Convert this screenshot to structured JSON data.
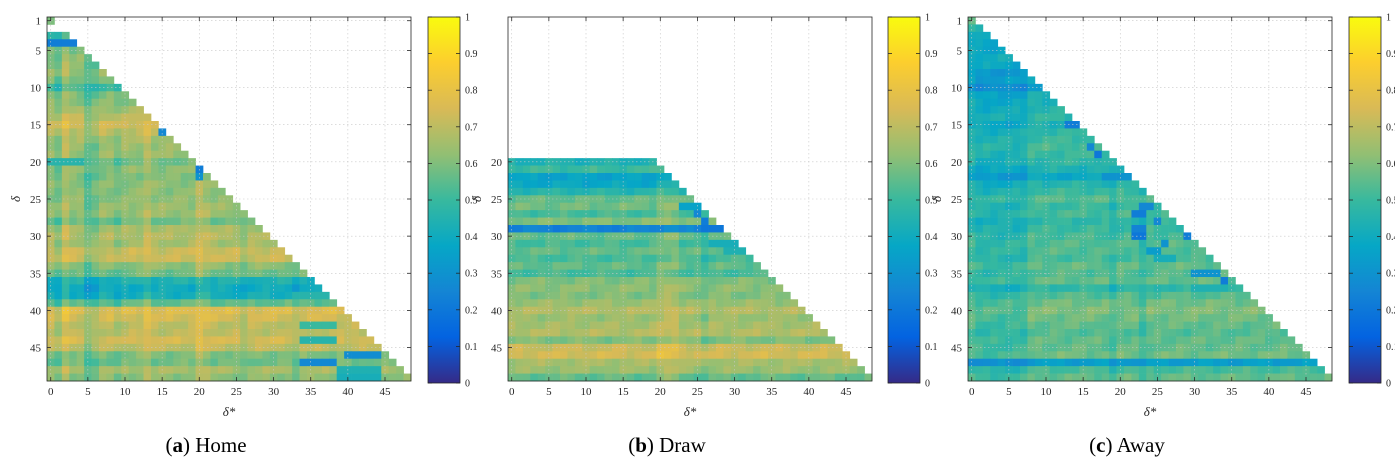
{
  "colorbar": {
    "ticks": [
      "0",
      "0.1",
      "0.2",
      "0.3",
      "0.4",
      "0.5",
      "0.6",
      "0.7",
      "0.8",
      "0.9",
      "1"
    ],
    "colormap": "parula",
    "colors": [
      "#352a87",
      "#0363e1",
      "#1485d4",
      "#06a7c6",
      "#38b99e",
      "#92bf73",
      "#d9ba56",
      "#fcce2e",
      "#f9fb0e"
    ]
  },
  "chart_data": [
    {
      "type": "heatmap",
      "panel": "a",
      "caption_letter": "a",
      "caption_title": "Home",
      "xlabel": "δ*",
      "ylabel": "δ",
      "x_ticks": [
        "0",
        "5",
        "10",
        "15",
        "20",
        "25",
        "30",
        "35",
        "40",
        "45"
      ],
      "y_ticks": [
        "1",
        "5",
        "10",
        "15",
        "20",
        "25",
        "30",
        "35",
        "40",
        "45"
      ],
      "x_range": [
        0,
        48
      ],
      "y_range": [
        1,
        49
      ],
      "clim": [
        0,
        1
      ],
      "mask": "lower-triangle (δ* < δ)",
      "row_value": {
        "1": 0.56,
        "3": 0.5,
        "4": 0.28,
        "5": 0.6,
        "6": 0.62,
        "7": 0.62,
        "8": 0.64,
        "9": 0.6,
        "10": 0.52,
        "11": 0.6,
        "12": 0.62,
        "13": 0.66,
        "14": 0.7,
        "15": 0.74,
        "16": 0.7,
        "17": 0.66,
        "18": 0.64,
        "19": 0.64,
        "20": 0.58,
        "21": 0.62,
        "22": 0.6,
        "23": 0.62,
        "24": 0.62,
        "25": 0.62,
        "26": 0.64,
        "27": 0.64,
        "28": 0.58,
        "29": 0.66,
        "30": 0.68,
        "31": 0.66,
        "32": 0.72,
        "33": 0.72,
        "34": 0.62,
        "35": 0.58,
        "36": 0.44,
        "37": 0.4,
        "38": 0.42,
        "39": 0.56,
        "40": 0.76,
        "41": 0.74,
        "42": 0.7,
        "43": 0.7,
        "44": 0.74,
        "45": 0.7,
        "46": 0.6,
        "47": 0.58,
        "48": 0.66,
        "49": 0.62
      },
      "col_offset": {
        "1": -0.05,
        "2": 0.05,
        "5": -0.08,
        "6": -0.05,
        "9": -0.04,
        "13": 0.05,
        "20": 0.06,
        "21": 0.03,
        "26": -0.04,
        "33": -0.04
      },
      "overrides": [
        {
          "row": 4,
          "col_from": 0,
          "col_to": 3,
          "value": 0.22
        },
        {
          "row": 9,
          "col_from": 9,
          "col_to": 9,
          "value": 0.3
        },
        {
          "row": 16,
          "col_from": 15,
          "col_to": 15,
          "value": 0.26
        },
        {
          "row": 20,
          "col_from": 0,
          "col_to": 4,
          "value": 0.46
        },
        {
          "row": 21,
          "col_from": 20,
          "col_to": 20,
          "value": 0.22
        },
        {
          "row": 22,
          "col_from": 20,
          "col_to": 20,
          "value": 0.3
        },
        {
          "row": 38,
          "col_from": 33,
          "col_to": 37,
          "value": 0.46
        },
        {
          "row": 42,
          "col_from": 34,
          "col_to": 38,
          "value": 0.5
        },
        {
          "row": 44,
          "col_from": 34,
          "col_to": 38,
          "value": 0.46
        },
        {
          "row": 46,
          "col_from": 40,
          "col_to": 44,
          "value": 0.28
        },
        {
          "row": 47,
          "col_from": 34,
          "col_to": 38,
          "value": 0.26
        },
        {
          "row": 48,
          "col_from": 39,
          "col_to": 44,
          "value": 0.44
        },
        {
          "row": 49,
          "col_from": 39,
          "col_to": 44,
          "value": 0.42
        }
      ]
    },
    {
      "type": "heatmap",
      "panel": "b",
      "caption_letter": "b",
      "caption_title": "Draw",
      "xlabel": "δ*",
      "ylabel": "δ",
      "x_ticks": [
        "0",
        "5",
        "10",
        "15",
        "20",
        "25",
        "30",
        "35",
        "40",
        "45"
      ],
      "y_ticks": [
        "20",
        "25",
        "30",
        "35",
        "40",
        "45"
      ],
      "x_range": [
        0,
        48
      ],
      "y_range": [
        1,
        49
      ],
      "clim": [
        0,
        1
      ],
      "mask": "rows 20–49 only, lower-triangle (δ* < δ)",
      "row_value": {
        "20": 0.44,
        "21": 0.5,
        "22": 0.36,
        "23": 0.38,
        "24": 0.46,
        "25": 0.56,
        "26": 0.58,
        "27": 0.52,
        "28": 0.6,
        "29": 0.24,
        "30": 0.56,
        "31": 0.52,
        "32": 0.56,
        "33": 0.52,
        "34": 0.56,
        "35": 0.52,
        "36": 0.6,
        "37": 0.62,
        "38": 0.6,
        "39": 0.64,
        "40": 0.68,
        "41": 0.64,
        "42": 0.66,
        "43": 0.68,
        "44": 0.6,
        "45": 0.72,
        "46": 0.74,
        "47": 0.66,
        "48": 0.64,
        "49": 0.56
      },
      "col_offset": {
        "20": 0.04,
        "21": 0.05,
        "22": 0.05,
        "26": -0.04
      },
      "overrides": [
        {
          "row": 26,
          "col_from": 23,
          "col_to": 25,
          "value": 0.36
        },
        {
          "row": 27,
          "col_from": 25,
          "col_to": 25,
          "value": 0.26
        },
        {
          "row": 28,
          "col_from": 26,
          "col_to": 26,
          "value": 0.22
        },
        {
          "row": 29,
          "col_from": 26,
          "col_to": 28,
          "value": 0.2
        },
        {
          "row": 31,
          "col_from": 27,
          "col_to": 30,
          "value": 0.42
        },
        {
          "row": 32,
          "col_from": 29,
          "col_to": 31,
          "value": 0.44
        }
      ]
    },
    {
      "type": "heatmap",
      "panel": "c",
      "caption_letter": "c",
      "caption_title": "Away",
      "xlabel": "δ*",
      "ylabel": "δ",
      "x_ticks": [
        "0",
        "5",
        "10",
        "15",
        "20",
        "25",
        "30",
        "35",
        "40",
        "45"
      ],
      "y_ticks": [
        "1",
        "5",
        "10",
        "15",
        "20",
        "25",
        "30",
        "35",
        "40",
        "45"
      ],
      "x_range": [
        0,
        48
      ],
      "y_range": [
        1,
        49
      ],
      "clim": [
        0,
        1
      ],
      "mask": "lower-triangle (δ* < δ)",
      "row_value": {
        "1": 0.56,
        "2": 0.52,
        "3": 0.46,
        "4": 0.42,
        "5": 0.44,
        "6": 0.46,
        "7": 0.44,
        "8": 0.38,
        "9": 0.4,
        "10": 0.34,
        "11": 0.42,
        "12": 0.44,
        "13": 0.46,
        "14": 0.48,
        "15": 0.44,
        "16": 0.48,
        "17": 0.5,
        "18": 0.52,
        "19": 0.5,
        "20": 0.48,
        "21": 0.44,
        "22": 0.38,
        "23": 0.46,
        "24": 0.5,
        "25": 0.54,
        "26": 0.5,
        "27": 0.52,
        "28": 0.48,
        "29": 0.5,
        "30": 0.52,
        "31": 0.54,
        "32": 0.54,
        "33": 0.52,
        "34": 0.56,
        "35": 0.54,
        "36": 0.56,
        "37": 0.48,
        "38": 0.54,
        "39": 0.58,
        "40": 0.6,
        "41": 0.58,
        "42": 0.56,
        "43": 0.54,
        "44": 0.56,
        "45": 0.56,
        "46": 0.58,
        "47": 0.34,
        "48": 0.52,
        "49": 0.56
      },
      "col_offset": {
        "0": -0.03,
        "1": -0.06,
        "2": -0.06,
        "3": -0.06,
        "4": -0.06,
        "5": -0.06,
        "6": -0.06,
        "7": -0.06,
        "19": -0.04,
        "23": -0.05
      },
      "overrides": [
        {
          "row": 15,
          "col_from": 13,
          "col_to": 14,
          "value": 0.22
        },
        {
          "row": 18,
          "col_from": 16,
          "col_to": 16,
          "value": 0.26
        },
        {
          "row": 19,
          "col_from": 17,
          "col_to": 17,
          "value": 0.2
        },
        {
          "row": 22,
          "col_from": 18,
          "col_to": 21,
          "value": 0.3
        },
        {
          "row": 26,
          "col_from": 23,
          "col_to": 24,
          "value": 0.26
        },
        {
          "row": 27,
          "col_from": 22,
          "col_to": 23,
          "value": 0.22
        },
        {
          "row": 28,
          "col_from": 25,
          "col_to": 25,
          "value": 0.26
        },
        {
          "row": 29,
          "col_from": 22,
          "col_to": 23,
          "value": 0.24
        },
        {
          "row": 30,
          "col_from": 22,
          "col_to": 23,
          "value": 0.2
        },
        {
          "row": 30,
          "col_from": 29,
          "col_to": 29,
          "value": 0.22
        },
        {
          "row": 31,
          "col_from": 26,
          "col_to": 26,
          "value": 0.3
        },
        {
          "row": 32,
          "col_from": 24,
          "col_to": 25,
          "value": 0.34
        },
        {
          "row": 33,
          "col_from": 25,
          "col_to": 27,
          "value": 0.42
        },
        {
          "row": 35,
          "col_from": 30,
          "col_to": 33,
          "value": 0.3
        },
        {
          "row": 36,
          "col_from": 34,
          "col_to": 34,
          "value": 0.22
        },
        {
          "row": 37,
          "col_from": 30,
          "col_to": 34,
          "value": 0.44
        }
      ]
    }
  ]
}
